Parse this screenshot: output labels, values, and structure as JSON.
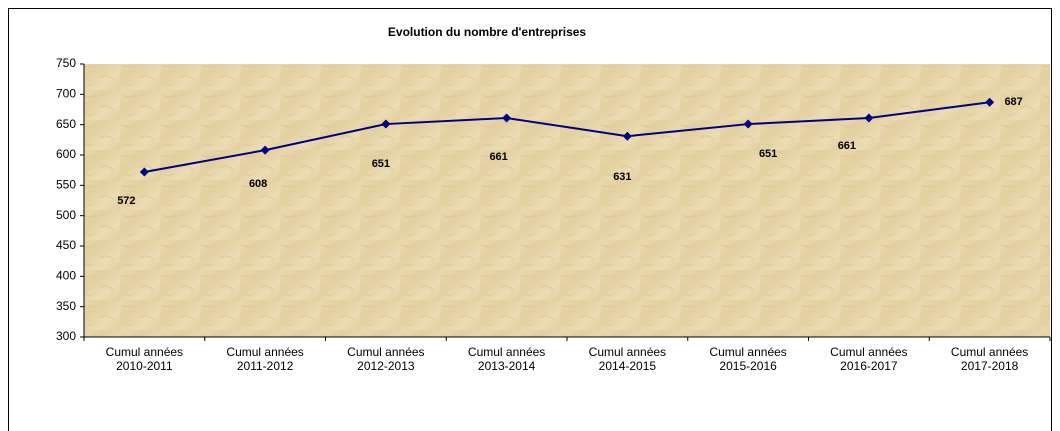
{
  "chart_data": {
    "type": "line",
    "title": "Evolution du nombre d'entreprises",
    "categories": [
      "Cumul années 2010-2011",
      "Cumul années 2011-2012",
      "Cumul années 2012-2013",
      "Cumul années 2013-2014",
      "Cumul années 2014-2015",
      "Cumul années 2015-2016",
      "Cumul années 2016-2017",
      "Cumul années 2017-2018"
    ],
    "values": [
      572,
      608,
      651,
      661,
      631,
      651,
      661,
      687
    ],
    "color": "#000080",
    "ylim": [
      300,
      750
    ],
    "yticks": [
      300,
      350,
      400,
      450,
      500,
      550,
      600,
      650,
      700,
      750
    ]
  }
}
